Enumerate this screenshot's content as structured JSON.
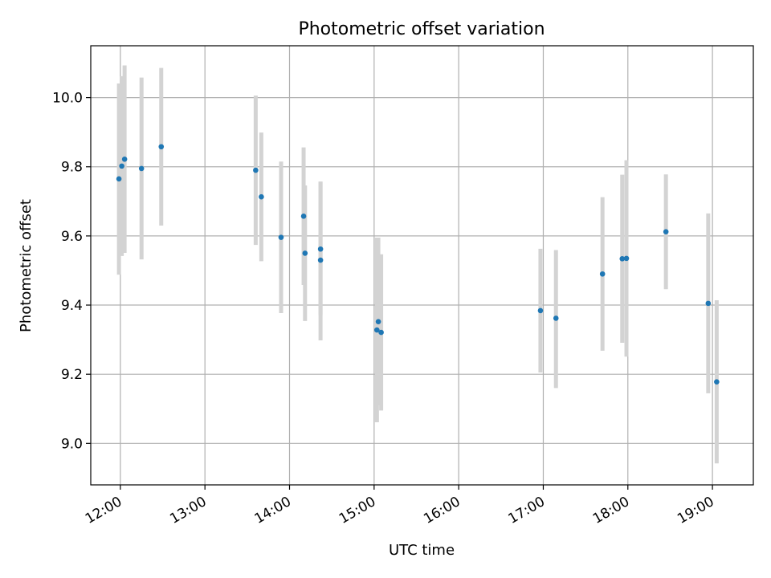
{
  "chart_data": {
    "type": "scatter",
    "title": "Photometric offset variation",
    "xlabel": "UTC time",
    "ylabel": "Photometric offset",
    "xlim": [
      "11:39",
      "19:29"
    ],
    "ylim": [
      8.88,
      10.15
    ],
    "x_ticks": [
      "12:00",
      "13:00",
      "14:00",
      "15:00",
      "16:00",
      "17:00",
      "18:00",
      "19:00"
    ],
    "y_ticks": [
      "9.0",
      "9.2",
      "9.4",
      "9.6",
      "9.8",
      "10.0"
    ],
    "grid": true,
    "marker_color": "#1f77b4",
    "errorbar_color": "#d3d3d3",
    "points": [
      {
        "t": "11:59",
        "y": 9.765,
        "lo": 9.488,
        "hi": 10.041
      },
      {
        "t": "12:01",
        "y": 9.802,
        "lo": 9.542,
        "hi": 10.062
      },
      {
        "t": "12:03",
        "y": 9.822,
        "lo": 9.551,
        "hi": 10.093
      },
      {
        "t": "12:15",
        "y": 9.795,
        "lo": 9.532,
        "hi": 10.058
      },
      {
        "t": "12:29",
        "y": 9.858,
        "lo": 9.63,
        "hi": 10.086
      },
      {
        "t": "13:36",
        "y": 9.79,
        "lo": 9.574,
        "hi": 10.006
      },
      {
        "t": "13:40",
        "y": 9.713,
        "lo": 9.527,
        "hi": 9.899
      },
      {
        "t": "13:54",
        "y": 9.596,
        "lo": 9.377,
        "hi": 9.815
      },
      {
        "t": "14:10",
        "y": 9.657,
        "lo": 9.458,
        "hi": 9.856
      },
      {
        "t": "14:11",
        "y": 9.55,
        "lo": 9.354,
        "hi": 9.746
      },
      {
        "t": "14:22",
        "y": 9.562,
        "lo": 9.371,
        "hi": 9.757
      },
      {
        "t": "14:22",
        "y": 9.53,
        "lo": 9.298,
        "hi": 9.757
      },
      {
        "t": "15:02",
        "y": 9.328,
        "lo": 9.061,
        "hi": 9.595
      },
      {
        "t": "15:03",
        "y": 9.352,
        "lo": 9.11,
        "hi": 9.595
      },
      {
        "t": "15:05",
        "y": 9.321,
        "lo": 9.095,
        "hi": 9.547
      },
      {
        "t": "16:58",
        "y": 9.384,
        "lo": 9.205,
        "hi": 9.563
      },
      {
        "t": "17:09",
        "y": 9.362,
        "lo": 9.16,
        "hi": 9.559
      },
      {
        "t": "17:42",
        "y": 9.49,
        "lo": 9.268,
        "hi": 9.712
      },
      {
        "t": "17:56",
        "y": 9.534,
        "lo": 9.291,
        "hi": 9.777
      },
      {
        "t": "17:59",
        "y": 9.535,
        "lo": 9.251,
        "hi": 9.819
      },
      {
        "t": "18:27",
        "y": 9.612,
        "lo": 9.446,
        "hi": 9.778
      },
      {
        "t": "18:57",
        "y": 9.405,
        "lo": 9.145,
        "hi": 9.665
      },
      {
        "t": "19:03",
        "y": 9.178,
        "lo": 8.942,
        "hi": 9.414
      }
    ]
  }
}
